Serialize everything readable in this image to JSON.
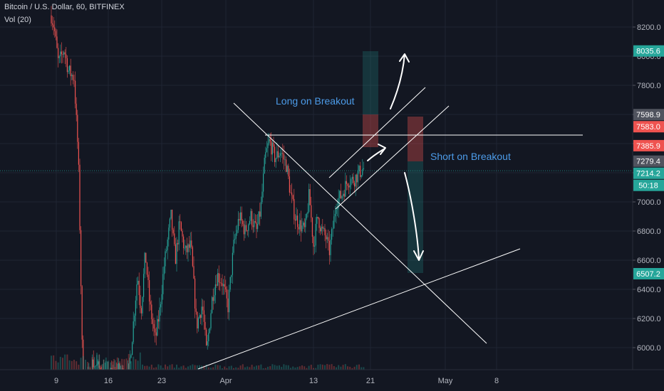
{
  "header": {
    "symbol": "Bitcoin / U.S. Dollar, 60, BITFINEX",
    "volume_indicator": "Vol (20)"
  },
  "colors": {
    "up": "#26a69a",
    "down": "#ef5350",
    "background": "#131722",
    "text": "#b2b5be",
    "annotation_text": "#4c9be8",
    "drawing": "#ffffff",
    "price_badge_gray": "#50535e"
  },
  "chart_data": {
    "type": "candlestick",
    "title": "",
    "xlabel": "",
    "ylabel": "",
    "x_tick_labels": [
      "9",
      "16",
      "23",
      "Apr",
      "13",
      "21",
      "May",
      "8"
    ],
    "y_tick_labels": [
      6000,
      6200,
      6400,
      6600,
      6800,
      7000,
      7200,
      7400,
      7600,
      7800,
      8000,
      8200
    ],
    "ylim": [
      5850,
      8350
    ],
    "grid": true,
    "price_badges": [
      {
        "label": "8035.6",
        "value": 8035.6,
        "color": "#26a69a"
      },
      {
        "label": "7598.9",
        "value": 7598.9,
        "color": "#50535e"
      },
      {
        "label": "7583.0",
        "value": 7583.0,
        "color": "#ef5350"
      },
      {
        "label": "7385.9",
        "value": 7385.9,
        "color": "#ef5350"
      },
      {
        "label": "7279.4",
        "value": 7279.4,
        "color": "#50535e"
      },
      {
        "label": "7214.2",
        "value": 7214.2,
        "color": "#26a69a"
      },
      {
        "label": "50:18",
        "value": 7130,
        "color": "#26a69a"
      },
      {
        "label": "6507.2",
        "value": 6507.2,
        "color": "#26a69a"
      }
    ],
    "annotations": [
      {
        "text": "Long on Breakout"
      },
      {
        "text": "Short on Breakout"
      }
    ]
  }
}
